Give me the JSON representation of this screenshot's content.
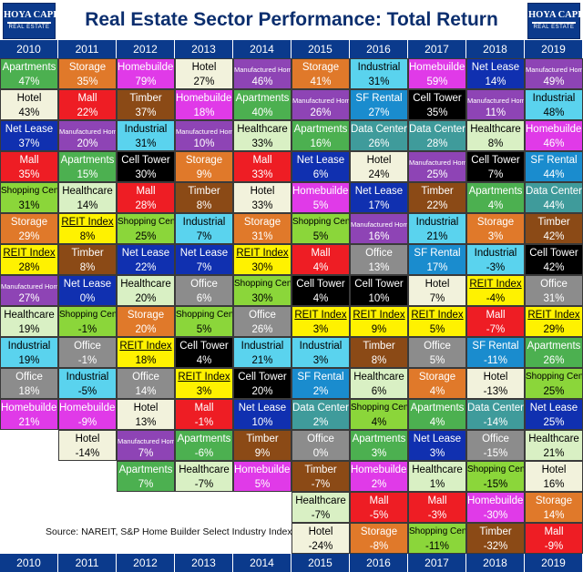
{
  "header": {
    "title": "Real Estate Sector Performance: Total Return",
    "logo": {
      "line1": "HOYA CAPITAL",
      "line2": "REAL ESTATE"
    },
    "years": [
      "2010",
      "2011",
      "2012",
      "2013",
      "2014",
      "2015",
      "2016",
      "2017",
      "2018",
      "2019"
    ]
  },
  "footer": {
    "source": "Source: NAREIT, S&P Home Builder Select Industry Index"
  },
  "colors": {
    "Apartments": "#4cb050",
    "Storage": "#e0792a",
    "Homebuilders": "#e03ae8",
    "Hotel": "#f2f2dc",
    "Manufactured Home": "#8e44b5",
    "Mall": "#ee1d24",
    "Timber": "#8b4a16",
    "Industrial": "#5ad3ee",
    "SF Rental": "#1a8cce",
    "Net Lease": "#1030b0",
    "Cell Tower": "#000000",
    "Data Center": "#3f9b9b",
    "Healthcare": "#d9f0c4",
    "Shopping Center": "#8bd63a",
    "REIT Index": "#fff200",
    "Office": "#8c8c8c"
  },
  "chart_data": {
    "type": "table",
    "title": "Real Estate Sector Performance: Total Return",
    "columns": [
      "2010",
      "2011",
      "2012",
      "2013",
      "2014",
      "2015",
      "2016",
      "2017",
      "2018",
      "2019"
    ],
    "cells": [
      [
        {
          "name": "Apartments",
          "value": "47%"
        },
        {
          "name": "Hotel",
          "value": "43%"
        },
        {
          "name": "Net Lease",
          "value": "37%"
        },
        {
          "name": "Mall",
          "value": "35%"
        },
        {
          "name": "Shopping Center",
          "value": "31%"
        },
        {
          "name": "Storage",
          "value": "29%"
        },
        {
          "name": "REIT Index",
          "value": "28%"
        },
        {
          "name": "Manufactured Home",
          "value": "27%"
        },
        {
          "name": "Healthcare",
          "value": "19%"
        },
        {
          "name": "Industrial",
          "value": "19%"
        },
        {
          "name": "Office",
          "value": "18%"
        },
        {
          "name": "Homebuilders",
          "value": "21%"
        }
      ],
      [
        {
          "name": "Storage",
          "value": "35%"
        },
        {
          "name": "Mall",
          "value": "22%"
        },
        {
          "name": "Manufactured Home",
          "value": "20%"
        },
        {
          "name": "Apartments",
          "value": "15%"
        },
        {
          "name": "Healthcare",
          "value": "14%"
        },
        {
          "name": "REIT Index",
          "value": "8%"
        },
        {
          "name": "Timber",
          "value": "8%"
        },
        {
          "name": "Net Lease",
          "value": "0%"
        },
        {
          "name": "Shopping Center",
          "value": "-1%"
        },
        {
          "name": "Office",
          "value": "-1%"
        },
        {
          "name": "Industrial",
          "value": "-5%"
        },
        {
          "name": "Homebuilders",
          "value": "-9%"
        },
        {
          "name": "Hotel",
          "value": "-14%"
        }
      ],
      [
        {
          "name": "Homebuilders",
          "value": "79%"
        },
        {
          "name": "Timber",
          "value": "37%"
        },
        {
          "name": "Industrial",
          "value": "31%"
        },
        {
          "name": "Cell Tower",
          "value": "30%"
        },
        {
          "name": "Mall",
          "value": "28%"
        },
        {
          "name": "Shopping Center",
          "value": "25%"
        },
        {
          "name": "Net Lease",
          "value": "22%"
        },
        {
          "name": "Healthcare",
          "value": "20%"
        },
        {
          "name": "Storage",
          "value": "20%"
        },
        {
          "name": "REIT Index",
          "value": "18%"
        },
        {
          "name": "Office",
          "value": "14%"
        },
        {
          "name": "Hotel",
          "value": "13%"
        },
        {
          "name": "Manufactured Home",
          "value": "7%"
        },
        {
          "name": "Apartments",
          "value": "7%"
        }
      ],
      [
        {
          "name": "Hotel",
          "value": "27%"
        },
        {
          "name": "Homebuilders",
          "value": "18%"
        },
        {
          "name": "Manufactured Home",
          "value": "10%"
        },
        {
          "name": "Storage",
          "value": "9%"
        },
        {
          "name": "Timber",
          "value": "8%"
        },
        {
          "name": "Industrial",
          "value": "7%"
        },
        {
          "name": "Net Lease",
          "value": "7%"
        },
        {
          "name": "Office",
          "value": "6%"
        },
        {
          "name": "Shopping Center",
          "value": "5%"
        },
        {
          "name": "Cell Tower",
          "value": "4%"
        },
        {
          "name": "REIT Index",
          "value": "3%"
        },
        {
          "name": "Mall",
          "value": "-1%"
        },
        {
          "name": "Apartments",
          "value": "-6%"
        },
        {
          "name": "Healthcare",
          "value": "-7%"
        }
      ],
      [
        {
          "name": "Manufactured Home",
          "value": "46%"
        },
        {
          "name": "Apartments",
          "value": "40%"
        },
        {
          "name": "Healthcare",
          "value": "33%"
        },
        {
          "name": "Mall",
          "value": "33%"
        },
        {
          "name": "Hotel",
          "value": "33%"
        },
        {
          "name": "Storage",
          "value": "31%"
        },
        {
          "name": "REIT Index",
          "value": "30%"
        },
        {
          "name": "Shopping Center",
          "value": "30%"
        },
        {
          "name": "Office",
          "value": "26%"
        },
        {
          "name": "Industrial",
          "value": "21%"
        },
        {
          "name": "Cell Tower",
          "value": "20%"
        },
        {
          "name": "Net Lease",
          "value": "10%"
        },
        {
          "name": "Timber",
          "value": "9%"
        },
        {
          "name": "Homebuilders",
          "value": "5%"
        }
      ],
      [
        {
          "name": "Storage",
          "value": "41%"
        },
        {
          "name": "Manufactured Home",
          "value": "26%"
        },
        {
          "name": "Apartments",
          "value": "16%"
        },
        {
          "name": "Net Lease",
          "value": "6%"
        },
        {
          "name": "Homebuilders",
          "value": "5%"
        },
        {
          "name": "Shopping Center",
          "value": "5%"
        },
        {
          "name": "Mall",
          "value": "4%"
        },
        {
          "name": "Cell Tower",
          "value": "4%"
        },
        {
          "name": "REIT Index",
          "value": "3%"
        },
        {
          "name": "Industrial",
          "value": "3%"
        },
        {
          "name": "SF Rental",
          "value": "2%"
        },
        {
          "name": "Data Center",
          "value": "2%"
        },
        {
          "name": "Office",
          "value": "0%"
        },
        {
          "name": "Timber",
          "value": "-7%"
        },
        {
          "name": "Healthcare",
          "value": "-7%"
        },
        {
          "name": "Hotel",
          "value": "-24%"
        }
      ],
      [
        {
          "name": "Industrial",
          "value": "31%"
        },
        {
          "name": "SF Rental",
          "value": "27%"
        },
        {
          "name": "Data Center",
          "value": "26%"
        },
        {
          "name": "Hotel",
          "value": "24%"
        },
        {
          "name": "Net Lease",
          "value": "17%"
        },
        {
          "name": "Manufactured Home",
          "value": "16%"
        },
        {
          "name": "Office",
          "value": "13%"
        },
        {
          "name": "Cell Tower",
          "value": "10%"
        },
        {
          "name": "REIT Index",
          "value": "9%"
        },
        {
          "name": "Timber",
          "value": "8%"
        },
        {
          "name": "Healthcare",
          "value": "6%"
        },
        {
          "name": "Shopping Center",
          "value": "4%"
        },
        {
          "name": "Apartments",
          "value": "3%"
        },
        {
          "name": "Homebuilders",
          "value": "2%"
        },
        {
          "name": "Mall",
          "value": "-5%"
        },
        {
          "name": "Storage",
          "value": "-8%"
        }
      ],
      [
        {
          "name": "Homebuilders",
          "value": "59%"
        },
        {
          "name": "Cell Tower",
          "value": "35%"
        },
        {
          "name": "Data Center",
          "value": "28%"
        },
        {
          "name": "Manufactured Home",
          "value": "25%"
        },
        {
          "name": "Timber",
          "value": "22%"
        },
        {
          "name": "Industrial",
          "value": "21%"
        },
        {
          "name": "SF Rental",
          "value": "17%"
        },
        {
          "name": "Hotel",
          "value": "7%"
        },
        {
          "name": "REIT Index",
          "value": "5%"
        },
        {
          "name": "Office",
          "value": "5%"
        },
        {
          "name": "Storage",
          "value": "4%"
        },
        {
          "name": "Apartments",
          "value": "4%"
        },
        {
          "name": "Net Lease",
          "value": "3%"
        },
        {
          "name": "Healthcare",
          "value": "1%"
        },
        {
          "name": "Mall",
          "value": "-3%"
        },
        {
          "name": "Shopping Center",
          "value": "-11%"
        }
      ],
      [
        {
          "name": "Net Lease",
          "value": "14%"
        },
        {
          "name": "Manufactured Home",
          "value": "11%"
        },
        {
          "name": "Healthcare",
          "value": "8%"
        },
        {
          "name": "Cell Tower",
          "value": "7%"
        },
        {
          "name": "Apartments",
          "value": "4%"
        },
        {
          "name": "Storage",
          "value": "3%"
        },
        {
          "name": "Industrial",
          "value": "-3%"
        },
        {
          "name": "REIT Index",
          "value": "-4%"
        },
        {
          "name": "Mall",
          "value": "-7%"
        },
        {
          "name": "SF Rental",
          "value": "-11%"
        },
        {
          "name": "Hotel",
          "value": "-13%"
        },
        {
          "name": "Data Center",
          "value": "-14%"
        },
        {
          "name": "Office",
          "value": "-15%"
        },
        {
          "name": "Shopping Center",
          "value": "-15%"
        },
        {
          "name": "Homebuilders",
          "value": "-30%"
        },
        {
          "name": "Timber",
          "value": "-32%"
        }
      ],
      [
        {
          "name": "Manufactured Home",
          "value": "49%"
        },
        {
          "name": "Industrial",
          "value": "48%"
        },
        {
          "name": "Homebuilders",
          "value": "46%"
        },
        {
          "name": "SF Rental",
          "value": "44%"
        },
        {
          "name": "Data Center",
          "value": "44%"
        },
        {
          "name": "Timber",
          "value": "42%"
        },
        {
          "name": "Cell Tower",
          "value": "42%"
        },
        {
          "name": "Office",
          "value": "31%"
        },
        {
          "name": "REIT Index",
          "value": "29%"
        },
        {
          "name": "Apartments",
          "value": "26%"
        },
        {
          "name": "Shopping Center",
          "value": "25%"
        },
        {
          "name": "Net Lease",
          "value": "25%"
        },
        {
          "name": "Healthcare",
          "value": "21%"
        },
        {
          "name": "Hotel",
          "value": "16%"
        },
        {
          "name": "Storage",
          "value": "14%"
        },
        {
          "name": "Mall",
          "value": "-9%"
        }
      ]
    ]
  }
}
